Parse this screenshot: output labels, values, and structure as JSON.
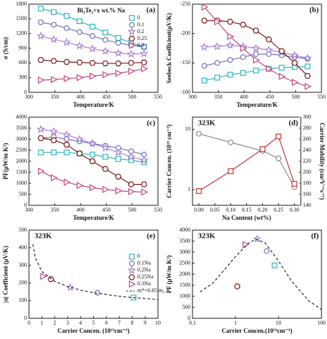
{
  "chart_data": [
    {
      "type": "line",
      "panel_label": "(a)",
      "xlabel": "Temperature/K",
      "ylabel": "σ (S/cm)",
      "xlim": [
        300,
        550
      ],
      "xticks": [
        300,
        350,
        400,
        450,
        500,
        550
      ],
      "ylim": [
        0,
        1800
      ],
      "yticks": [
        0,
        300,
        600,
        900,
        1200,
        1500,
        1800
      ],
      "legend": "upper right",
      "legend_title": "Bi₂Te₃+x wt.% Na",
      "x": [
        323,
        348,
        373,
        398,
        423,
        448,
        473,
        498,
        523
      ],
      "series": [
        {
          "name": "0",
          "color": "#27b4bf",
          "marker": "square",
          "line_style": "solid",
          "values": [
            1710,
            1640,
            1560,
            1450,
            1340,
            1220,
            1110,
            1010,
            930
          ]
        },
        {
          "name": "0.1",
          "color": "#6d6dbf",
          "marker": "circle",
          "line_style": "solid",
          "values": [
            1430,
            1380,
            1310,
            1230,
            1150,
            1070,
            1010,
            960,
            930
          ]
        },
        {
          "name": "0.2",
          "color": "#a97fcf",
          "marker": "star",
          "line_style": "solid",
          "values": [
            1150,
            1080,
            1020,
            950,
            890,
            840,
            800,
            780,
            790
          ]
        },
        {
          "name": "0.25",
          "color": "#7a1212",
          "marker": "hexagon",
          "line_style": "solid",
          "values": [
            660,
            640,
            620,
            610,
            600,
            590,
            590,
            600,
            610
          ]
        },
        {
          "name": "0.3",
          "color": "#c2407c",
          "marker": "triangle",
          "line_style": "solid",
          "values": [
            250,
            260,
            280,
            300,
            330,
            360,
            390,
            430,
            480
          ]
        }
      ]
    },
    {
      "type": "line",
      "panel_label": "(b)",
      "xlabel": "Temperature/K",
      "ylabel": "Seebeck Coefficient(μV/K)",
      "xlim": [
        300,
        550
      ],
      "xticks": [
        300,
        350,
        400,
        450,
        500,
        550
      ],
      "ylim": [
        -100,
        -250
      ],
      "yticks": [
        -250,
        -200,
        -150,
        -100
      ],
      "x": [
        323,
        348,
        373,
        398,
        423,
        448,
        473,
        498,
        523
      ],
      "series": [
        {
          "name": "0",
          "color": "#27b4bf",
          "marker": "square",
          "line_style": "solid",
          "values": [
            -120,
            -125,
            -130,
            -133,
            -137,
            -140,
            -142,
            -143,
            -144
          ]
        },
        {
          "name": "0.1",
          "color": "#6d6dbf",
          "marker": "circle",
          "line_style": "solid",
          "values": [
            -145,
            -150,
            -155,
            -160,
            -165,
            -165,
            -163,
            -160,
            -157
          ]
        },
        {
          "name": "0.2",
          "color": "#a97fcf",
          "marker": "star",
          "line_style": "solid",
          "values": [
            -177,
            -178,
            -180,
            -178,
            -175,
            -172,
            -168,
            -163,
            -158
          ]
        },
        {
          "name": "0.25",
          "color": "#7a1212",
          "marker": "hexagon",
          "line_style": "solid",
          "values": [
            -222,
            -222,
            -220,
            -215,
            -205,
            -190,
            -170,
            -150,
            -128
          ]
        },
        {
          "name": "0.3",
          "color": "#c2407c",
          "marker": "triangle",
          "line_style": "solid",
          "values": [
            -245,
            -220,
            -195,
            -175,
            -155,
            -140,
            -127,
            -117,
            -110
          ]
        }
      ]
    },
    {
      "type": "line",
      "panel_label": "(c)",
      "xlabel": "Temperature/K",
      "ylabel": "PF(μW/m K²)",
      "xlim": [
        300,
        550
      ],
      "xticks": [
        300,
        350,
        400,
        450,
        500,
        550
      ],
      "ylim": [
        0,
        4000
      ],
      "yticks": [
        0,
        500,
        1000,
        1500,
        2000,
        2500,
        3000,
        3500,
        4000
      ],
      "x": [
        323,
        348,
        373,
        398,
        423,
        448,
        473,
        498,
        523
      ],
      "series": [
        {
          "name": "0",
          "color": "#27b4bf",
          "marker": "square",
          "line_style": "solid",
          "values": [
            2400,
            2400,
            2400,
            2350,
            2300,
            2200,
            2100,
            2050,
            1950
          ]
        },
        {
          "name": "0.1",
          "color": "#6d6dbf",
          "marker": "circle",
          "line_style": "solid",
          "values": [
            3050,
            3100,
            3000,
            2900,
            2800,
            2700,
            2600,
            2450,
            2300
          ]
        },
        {
          "name": "0.2",
          "color": "#a97fcf",
          "marker": "star",
          "line_style": "solid",
          "values": [
            3450,
            3350,
            3200,
            3000,
            2800,
            2600,
            2400,
            2200,
            2050
          ]
        },
        {
          "name": "0.25",
          "color": "#7a1212",
          "marker": "hexagon",
          "line_style": "solid",
          "values": [
            3050,
            2950,
            2750,
            2350,
            2000,
            1650,
            1300,
            950,
            950
          ]
        },
        {
          "name": "0.3",
          "color": "#c2407c",
          "marker": "triangle",
          "line_style": "solid",
          "values": [
            1550,
            1250,
            1050,
            900,
            800,
            720,
            660,
            620,
            600
          ]
        }
      ]
    },
    {
      "type": "line",
      "panel_label": "(d)",
      "annotation": "323K",
      "xlabel": "Na Content (wt%)",
      "ylabel": "Carrier Concen. (10¹⁹ cm⁻³)",
      "ylabel_color": "#777777",
      "yscale": "log",
      "y2label": "Carrier Mobility (cm²V⁻¹s⁻¹)",
      "y2label_color": "#c0302a",
      "xlim": [
        -0.02,
        0.32
      ],
      "xticks": [
        {
          "value": 0,
          "label": "0.00"
        },
        {
          "value": 0.05,
          "label": "0.05"
        },
        {
          "value": 0.1,
          "label": "0.10"
        },
        {
          "value": 0.15,
          "label": "0.15"
        },
        {
          "value": 0.2,
          "label": "0.20"
        },
        {
          "value": 0.25,
          "label": "0.25"
        },
        {
          "value": 0.3,
          "label": "0.30"
        }
      ],
      "ylim": [
        0.55,
        16
      ],
      "yticks": [
        1,
        10
      ],
      "y2lim": [
        140,
        300
      ],
      "y2ticks": [
        140,
        160,
        180,
        200,
        220,
        240,
        260,
        280,
        300
      ],
      "x": [
        0,
        0.1,
        0.2,
        0.25,
        0.3
      ],
      "series": [
        {
          "name": "Carrier Concen.",
          "color": "#888888",
          "marker": "circle",
          "line_style": "solid",
          "values": [
            8.5,
            6.1,
            4.4,
            3.3,
            1.1
          ]
        },
        {
          "name": "Carrier Mobility",
          "color": "#c0302a",
          "marker": "square",
          "line_style": "solid",
          "axis": "y2",
          "values": [
            166,
            202,
            242,
            265,
            179
          ]
        }
      ]
    },
    {
      "type": "scatter",
      "panel_label": "(e)",
      "annotation": "323K",
      "xlabel": "Carrier Concen. (10¹⁹cm⁻³)",
      "ylabel": "|α| Coefficient (μV/K)",
      "xlim": [
        0,
        10
      ],
      "xticks": [
        0,
        1,
        2,
        3,
        4,
        5,
        6,
        7,
        8,
        9,
        10
      ],
      "ylim": [
        0,
        500
      ],
      "yticks": [
        0,
        100,
        200,
        300,
        400,
        500
      ],
      "legend": "center right",
      "series": [
        {
          "name": "0",
          "color": "#27b4bf",
          "marker": "square",
          "line_style": "none",
          "x": [
            8.1
          ],
          "values": [
            118
          ]
        },
        {
          "name": "0.1Na",
          "color": "#6d6dbf",
          "marker": "circle",
          "line_style": "none",
          "x": [
            5.3
          ],
          "values": [
            145
          ]
        },
        {
          "name": "0.2Na",
          "color": "#a97fcf",
          "marker": "star",
          "line_style": "none",
          "x": [
            3.2
          ],
          "values": [
            175
          ]
        },
        {
          "name": "0.25Na",
          "color": "#7a1212",
          "marker": "hexagon",
          "line_style": "none",
          "x": [
            1.7
          ],
          "values": [
            222
          ]
        },
        {
          "name": "0.3Na",
          "color": "#c2407c",
          "marker": "triangle",
          "line_style": "none",
          "x": [
            1.1
          ],
          "values": [
            238
          ]
        },
        {
          "name": "m*=0.85 m₀",
          "color": "#222222",
          "line_style": "dashed",
          "x": [
            0.3,
            0.5,
            1,
            2,
            3,
            4,
            5,
            6,
            7,
            8,
            9,
            10
          ],
          "values": [
            420,
            340,
            265,
            210,
            180,
            160,
            145,
            135,
            125,
            118,
            112,
            107
          ]
        }
      ]
    },
    {
      "type": "scatter",
      "panel_label": "(f)",
      "annotation": "323K",
      "xlabel": "Carrier Concen.(10¹⁹cm⁻³)",
      "ylabel": "PF (μW/m K²)",
      "xscale": "log",
      "xlim": [
        0.1,
        100
      ],
      "xticks": [
        0.1,
        1,
        10,
        100
      ],
      "ylim": [
        0,
        4000
      ],
      "yticks": [
        0,
        500,
        1000,
        1500,
        2000,
        2500,
        3000,
        3500,
        4000
      ],
      "series": [
        {
          "name": "0",
          "color": "#27b4bf",
          "marker": "square",
          "line_style": "none",
          "x": [
            8.1
          ],
          "values": [
            2400
          ]
        },
        {
          "name": "0.1Na",
          "color": "#6d6dbf",
          "marker": "circle",
          "line_style": "none",
          "x": [
            5.3
          ],
          "values": [
            3050
          ]
        },
        {
          "name": "0.2Na",
          "color": "#a97fcf",
          "marker": "star",
          "line_style": "none",
          "x": [
            3.2
          ],
          "values": [
            3600
          ]
        },
        {
          "name": "0.25Na",
          "color": "#7a1212",
          "marker": "hexagon",
          "line_style": "none",
          "x": [
            1.1
          ],
          "values": [
            1450
          ]
        },
        {
          "name": "0.3Na",
          "color": "#c2407c",
          "marker": "triangle",
          "line_style": "none",
          "x": [
            1.7
          ],
          "values": [
            3350
          ]
        },
        {
          "name": "m*=0.85 m₀",
          "color": "#222222",
          "line_style": "dashed",
          "x": [
            0.15,
            0.3,
            0.5,
            1,
            2,
            3,
            5,
            10,
            20,
            50,
            100
          ],
          "values": [
            1200,
            1600,
            2100,
            2800,
            3400,
            3600,
            3400,
            2600,
            1700,
            800,
            400
          ]
        }
      ]
    }
  ]
}
